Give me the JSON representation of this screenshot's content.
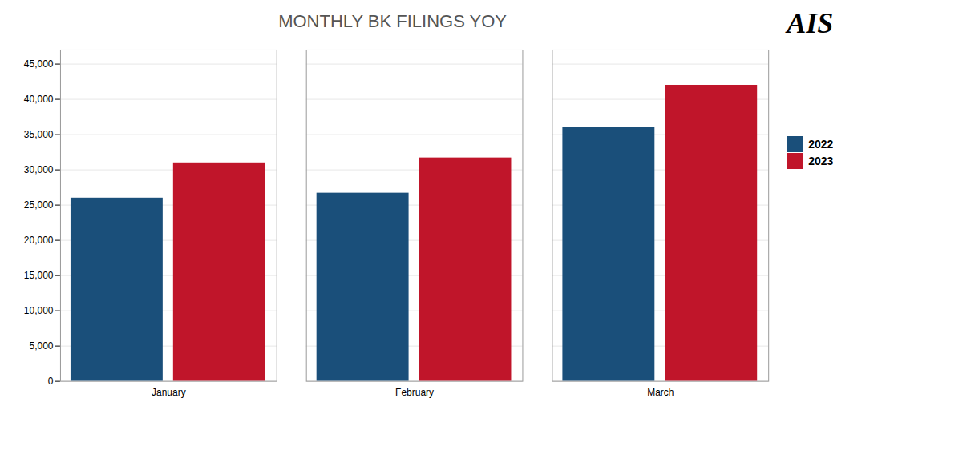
{
  "chart_data": {
    "type": "bar",
    "title": "MONTHLY BK FILINGS YOY",
    "categories": [
      "January",
      "February",
      "March"
    ],
    "series": [
      {
        "name": "2022",
        "color": "#1a4f7a",
        "values": [
          26000,
          26700,
          36000
        ]
      },
      {
        "name": "2023",
        "color": "#c0152a",
        "values": [
          31000,
          31700,
          42000
        ]
      }
    ],
    "ylim": [
      0,
      47000
    ],
    "yticks": [
      0,
      {
        "value": 5000,
        "label": "5,000"
      },
      {
        "value": 10000,
        "label": "10,000"
      },
      {
        "value": 15000,
        "label": "15,000"
      },
      {
        "value": 20000,
        "label": "20,000"
      },
      {
        "value": 25000,
        "label": "25,000"
      },
      {
        "value": 30000,
        "label": "30,000"
      },
      {
        "value": 35000,
        "label": "35,000"
      },
      {
        "value": 40000,
        "label": "40,000"
      },
      {
        "value": 45000,
        "label": "45,000"
      }
    ],
    "grid": true,
    "legend": "right",
    "annotations": [
      "AIS"
    ]
  }
}
